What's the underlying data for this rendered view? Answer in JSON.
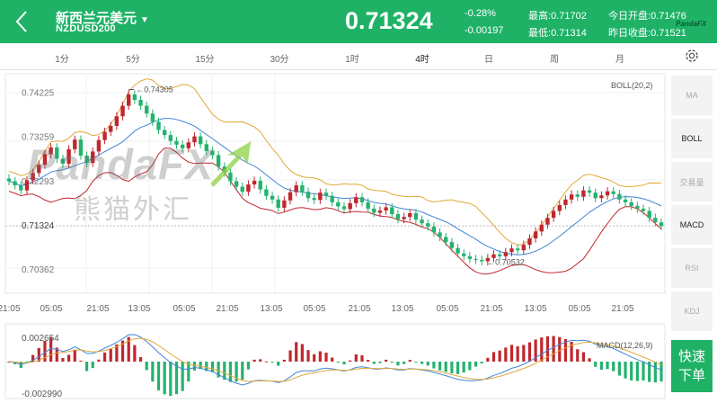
{
  "header": {
    "title": "新西兰元美元",
    "symbol": "NZDUSD200",
    "price": "0.71324",
    "change_pct": "-0.28%",
    "change_abs": "-0.00197",
    "high_label": "最高:",
    "high": "0.71702",
    "low_label": "最低:",
    "low": "0.71314",
    "open_label": "今日开盘:",
    "open": "0.71476",
    "prev_close_label": "昨日收盘:",
    "prev_close": "0.71521"
  },
  "colors": {
    "brand": "#1fb267",
    "up": "#c0272d",
    "down": "#24b26e",
    "boll_upper": "#e0a93a",
    "boll_mid": "#3f86d6",
    "boll_lower": "#c0272d"
  },
  "tabs": [
    "1分",
    "5分",
    "15分",
    "30分",
    "1时",
    "4时",
    "日",
    "周",
    "月"
  ],
  "active_tab": "4时",
  "side_buttons": [
    "MA",
    "BOLL",
    "交易量",
    "MACD",
    "RSI",
    "KDJ"
  ],
  "active_side": [
    "BOLL",
    "MACD"
  ],
  "quick_trade": [
    "快速",
    "下单"
  ],
  "watermark": {
    "brand": "PandaFX",
    "cn": "熊猫外汇"
  },
  "chart_data": {
    "type": "candlestick",
    "indicator_label": "BOLL(20,2)",
    "y_ticks": [
      "0.74225",
      "0.73259",
      "0.72293",
      "0.71324",
      "0.70362"
    ],
    "current_price_label": "0.71324",
    "max_annotation": "0.74305",
    "min_annotation": "0.70532",
    "x_ticks": [
      "21:05",
      "05:05",
      "21:05",
      "13:05",
      "05:05",
      "21:05",
      "13:05",
      "05:05",
      "21:05",
      "13:05",
      "05:05",
      "21:05",
      "13:05",
      "05:05",
      "21:05"
    ],
    "macd_label": "MACD(12,26,9)",
    "macd_ticks": [
      "0.002654",
      "-0.002990"
    ],
    "close": [
      0.723,
      0.7221,
      0.721,
      0.7232,
      0.7248,
      0.7266,
      0.7289,
      0.7304,
      0.7279,
      0.7268,
      0.73,
      0.7321,
      0.7286,
      0.727,
      0.7295,
      0.732,
      0.7338,
      0.7351,
      0.7372,
      0.7395,
      0.742,
      0.7408,
      0.7395,
      0.7378,
      0.736,
      0.7342,
      0.7331,
      0.7318,
      0.731,
      0.7302,
      0.7315,
      0.7328,
      0.7311,
      0.7296,
      0.7287,
      0.7262,
      0.7249,
      0.723,
      0.7218,
      0.7207,
      0.7223,
      0.7231,
      0.7212,
      0.7198,
      0.719,
      0.7172,
      0.7188,
      0.7206,
      0.7221,
      0.7207,
      0.7193,
      0.7189,
      0.7205,
      0.7198,
      0.7184,
      0.7175,
      0.7169,
      0.7182,
      0.7195,
      0.7184,
      0.717,
      0.7161,
      0.7166,
      0.7173,
      0.7158,
      0.7147,
      0.7152,
      0.716,
      0.7146,
      0.7138,
      0.7131,
      0.7118,
      0.7108,
      0.7097,
      0.7084,
      0.7072,
      0.7066,
      0.706,
      0.7058,
      0.7055,
      0.7062,
      0.707,
      0.7066,
      0.7075,
      0.7083,
      0.7079,
      0.7091,
      0.7105,
      0.712,
      0.7135,
      0.715,
      0.7165,
      0.7178,
      0.719,
      0.7201,
      0.7196,
      0.721,
      0.7205,
      0.7193,
      0.7199,
      0.7208,
      0.7202,
      0.719,
      0.7184,
      0.7176,
      0.717,
      0.7165,
      0.715,
      0.714,
      0.7132
    ]
  }
}
